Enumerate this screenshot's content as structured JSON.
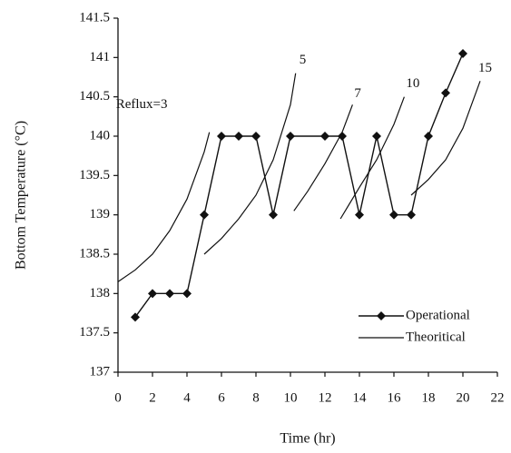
{
  "chart_data": {
    "type": "line",
    "x_label": "Time (hr)",
    "y_label": "Bottom Temperature (°C)",
    "xlim": [
      0,
      22
    ],
    "xticks": [
      0,
      2,
      4,
      6,
      8,
      10,
      12,
      14,
      16,
      18,
      20,
      22
    ],
    "ylim": [
      137,
      141.5
    ],
    "yticks": [
      137,
      137.5,
      138,
      138.5,
      139,
      139.5,
      140,
      140.5,
      141,
      141.5
    ],
    "series": [
      {
        "name": "Operational",
        "color": "#111111",
        "x": [
          1,
          2,
          3,
          4,
          5,
          6,
          7,
          8,
          9,
          10,
          12,
          13,
          14,
          15,
          16,
          17,
          18,
          19,
          20
        ],
        "values": [
          137.7,
          138,
          138,
          138,
          139,
          140,
          140,
          140,
          139,
          140,
          140,
          140,
          139,
          140,
          139,
          139,
          140,
          140.55,
          141.05
        ]
      }
    ],
    "theoretical": {
      "name": "Theoritical",
      "color": "#111111",
      "curves": [
        {
          "label": "Reflux=3",
          "x": [
            0,
            1,
            2,
            3,
            4,
            5,
            5.3
          ],
          "values": [
            138.15,
            138.3,
            138.5,
            138.8,
            139.2,
            139.8,
            140.05
          ]
        },
        {
          "label": "5",
          "x": [
            5,
            6,
            7,
            8,
            9,
            10,
            10.3
          ],
          "values": [
            138.5,
            138.7,
            138.95,
            139.25,
            139.7,
            140.4,
            140.8
          ]
        },
        {
          "label": "7",
          "x": [
            10.2,
            11,
            12,
            13,
            13.6
          ],
          "values": [
            139.05,
            139.3,
            139.65,
            140.05,
            140.4
          ]
        },
        {
          "label": "10",
          "x": [
            12.9,
            14,
            15,
            16,
            16.6
          ],
          "values": [
            138.95,
            139.35,
            139.7,
            140.15,
            140.5
          ]
        },
        {
          "label": "15",
          "x": [
            17,
            18,
            19,
            20,
            21
          ],
          "values": [
            139.25,
            139.45,
            139.7,
            140.1,
            140.7
          ]
        }
      ]
    },
    "legend": "lower right"
  }
}
